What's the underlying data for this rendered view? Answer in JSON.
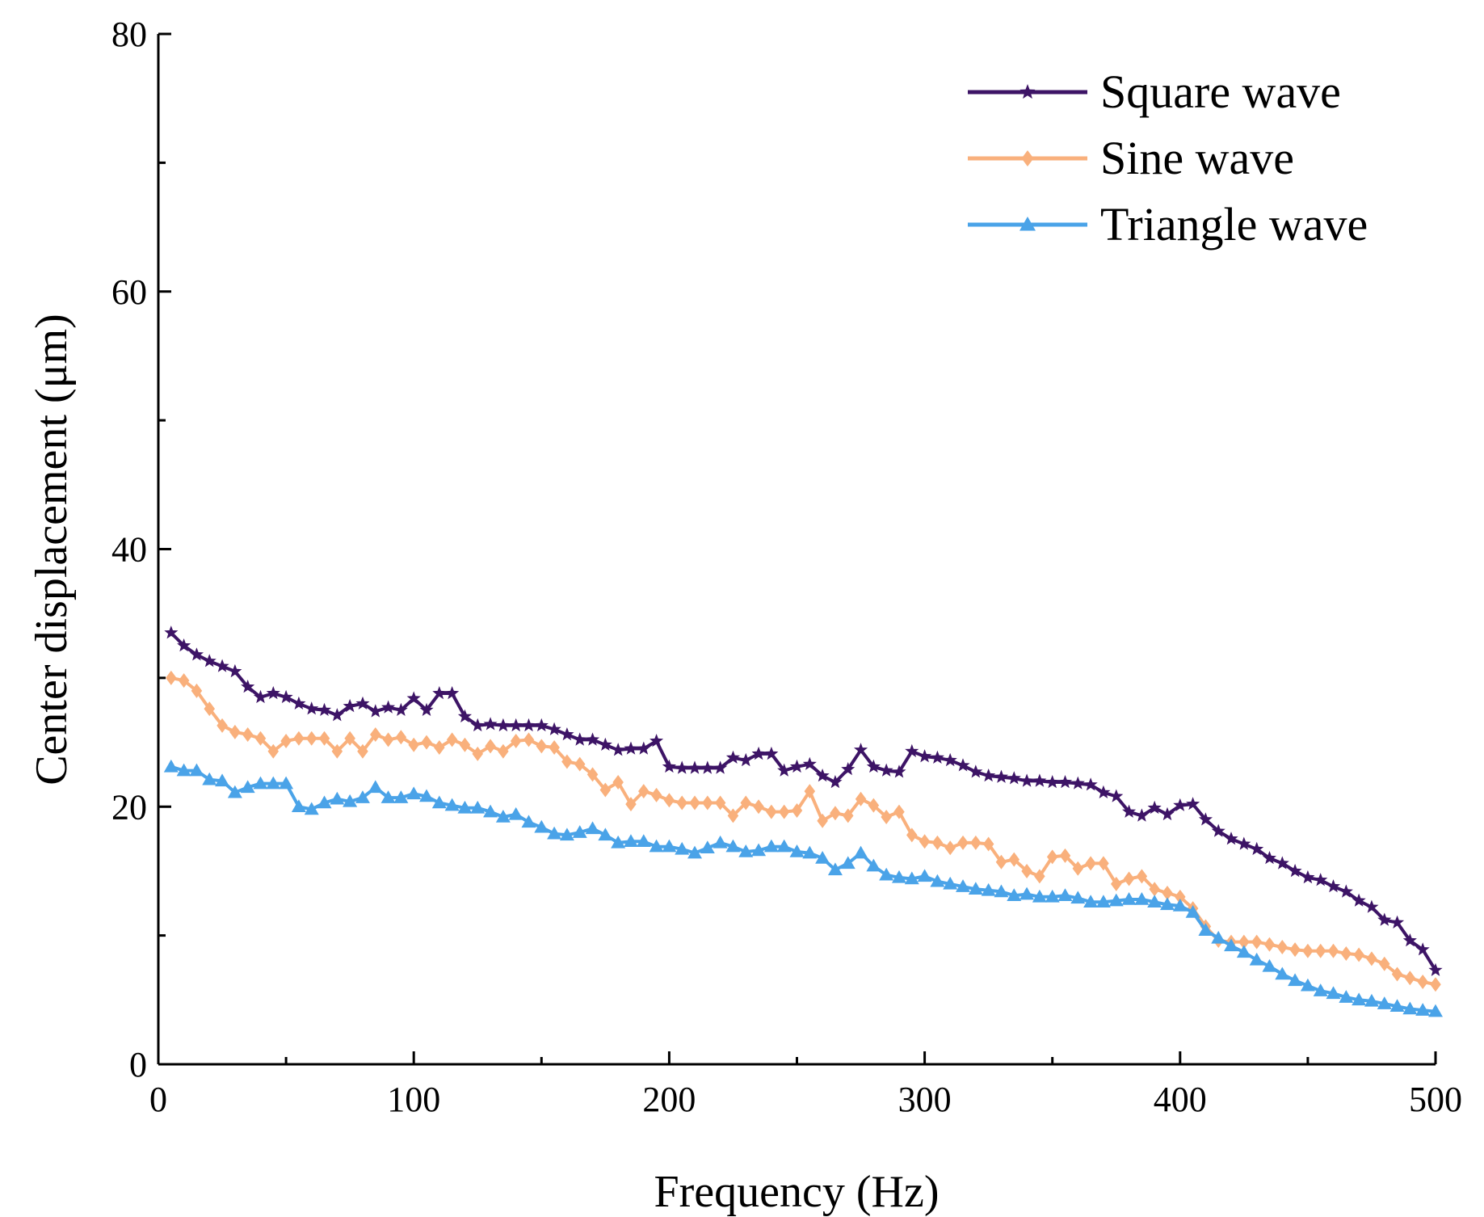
{
  "chart_data": {
    "type": "line",
    "title": "",
    "xlabel": "Frequency (Hz)",
    "ylabel": "Center displacement (μm)",
    "xlim": [
      0,
      500
    ],
    "ylim": [
      0,
      80
    ],
    "xticks": [
      0,
      100,
      200,
      300,
      400,
      500
    ],
    "yticks": [
      0,
      20,
      40,
      60,
      80
    ],
    "grid": false,
    "legend_position": "top-right",
    "x": [
      5,
      10,
      15,
      20,
      25,
      30,
      35,
      40,
      45,
      50,
      55,
      60,
      65,
      70,
      75,
      80,
      85,
      90,
      95,
      100,
      105,
      110,
      115,
      120,
      125,
      130,
      135,
      140,
      145,
      150,
      155,
      160,
      165,
      170,
      175,
      180,
      185,
      190,
      195,
      200,
      205,
      210,
      215,
      220,
      225,
      230,
      235,
      240,
      245,
      250,
      255,
      260,
      265,
      270,
      275,
      280,
      285,
      290,
      295,
      300,
      305,
      310,
      315,
      320,
      325,
      330,
      335,
      340,
      345,
      350,
      355,
      360,
      365,
      370,
      375,
      380,
      385,
      390,
      395,
      400,
      405,
      410,
      415,
      420,
      425,
      430,
      435,
      440,
      445,
      450,
      455,
      460,
      465,
      470,
      475,
      480,
      485,
      490,
      495,
      500
    ],
    "series": [
      {
        "name": "Square wave",
        "color": "#3d1466",
        "marker": "star",
        "values": [
          33.5,
          32.5,
          31.8,
          31.3,
          30.9,
          30.5,
          29.3,
          28.5,
          28.8,
          28.5,
          28.0,
          27.6,
          27.5,
          27.1,
          27.8,
          28.0,
          27.4,
          27.7,
          27.5,
          28.4,
          27.5,
          28.8,
          28.8,
          27.0,
          26.3,
          26.4,
          26.3,
          26.3,
          26.3,
          26.3,
          26.0,
          25.6,
          25.2,
          25.2,
          24.8,
          24.4,
          24.5,
          24.5,
          25.1,
          23.1,
          23.0,
          23.0,
          23.0,
          23.0,
          23.8,
          23.6,
          24.1,
          24.1,
          22.8,
          23.1,
          23.3,
          22.4,
          21.9,
          22.9,
          24.4,
          23.1,
          22.8,
          22.7,
          24.3,
          23.9,
          23.8,
          23.6,
          23.2,
          22.7,
          22.4,
          22.3,
          22.2,
          22.0,
          22.0,
          21.9,
          21.9,
          21.8,
          21.7,
          21.1,
          20.8,
          19.6,
          19.3,
          19.9,
          19.4,
          20.1,
          20.2,
          19.0,
          18.1,
          17.5,
          17.1,
          16.7,
          16.0,
          15.6,
          15.0,
          14.5,
          14.3,
          13.8,
          13.4,
          12.7,
          12.2,
          11.2,
          11.0,
          9.6,
          8.9,
          7.3
        ]
      },
      {
        "name": "Sine wave",
        "color": "#f9b07c",
        "marker": "diamond",
        "values": [
          30.0,
          29.8,
          29.0,
          27.6,
          26.3,
          25.8,
          25.6,
          25.3,
          24.3,
          25.1,
          25.3,
          25.3,
          25.3,
          24.3,
          25.3,
          24.3,
          25.6,
          25.2,
          25.4,
          24.8,
          25.0,
          24.6,
          25.2,
          24.8,
          24.1,
          24.7,
          24.3,
          25.1,
          25.2,
          24.7,
          24.6,
          23.5,
          23.3,
          22.5,
          21.3,
          21.9,
          20.2,
          21.2,
          20.9,
          20.5,
          20.3,
          20.3,
          20.3,
          20.3,
          19.3,
          20.3,
          20.0,
          19.6,
          19.6,
          19.7,
          21.2,
          18.9,
          19.5,
          19.3,
          20.6,
          20.1,
          19.2,
          19.6,
          17.8,
          17.3,
          17.2,
          16.8,
          17.2,
          17.2,
          17.1,
          15.7,
          15.9,
          15.0,
          14.6,
          16.1,
          16.2,
          15.2,
          15.6,
          15.6,
          14.0,
          14.4,
          14.6,
          13.6,
          13.3,
          13.0,
          12.1,
          10.7,
          9.6,
          9.5,
          9.5,
          9.5,
          9.3,
          9.1,
          8.9,
          8.8,
          8.8,
          8.8,
          8.6,
          8.5,
          8.2,
          7.8,
          7.0,
          6.7,
          6.4,
          6.2
        ]
      },
      {
        "name": "Triangle wave",
        "color": "#4aa3e8",
        "marker": "triangle",
        "values": [
          23.1,
          22.8,
          22.8,
          22.1,
          22.0,
          21.1,
          21.5,
          21.8,
          21.8,
          21.8,
          20.0,
          19.8,
          20.3,
          20.6,
          20.4,
          20.7,
          21.5,
          20.7,
          20.7,
          21.0,
          20.8,
          20.3,
          20.1,
          19.9,
          19.9,
          19.6,
          19.2,
          19.4,
          18.8,
          18.4,
          17.9,
          17.8,
          18.0,
          18.3,
          17.8,
          17.2,
          17.3,
          17.3,
          16.9,
          16.9,
          16.7,
          16.4,
          16.8,
          17.2,
          16.9,
          16.5,
          16.6,
          16.9,
          16.9,
          16.5,
          16.4,
          16.0,
          15.1,
          15.6,
          16.4,
          15.4,
          14.7,
          14.5,
          14.4,
          14.6,
          14.2,
          14.0,
          13.8,
          13.6,
          13.5,
          13.4,
          13.1,
          13.2,
          13.0,
          13.0,
          13.1,
          12.9,
          12.6,
          12.6,
          12.7,
          12.8,
          12.8,
          12.6,
          12.4,
          12.3,
          11.8,
          10.4,
          9.8,
          9.2,
          8.7,
          8.1,
          7.6,
          7.0,
          6.5,
          6.1,
          5.7,
          5.5,
          5.2,
          5.0,
          4.9,
          4.7,
          4.5,
          4.3,
          4.2,
          4.1
        ]
      }
    ]
  }
}
